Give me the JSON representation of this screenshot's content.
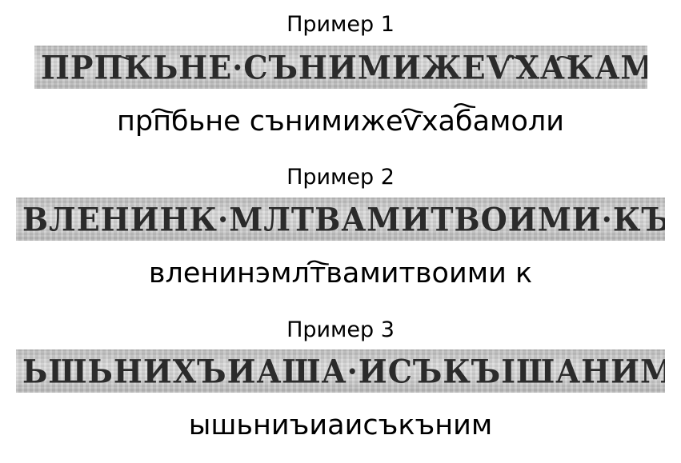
{
  "examples": [
    {
      "title": "Пример 1",
      "manuscript_text": "прп҇кьне·сънимижеѵ҇ха҇камоли",
      "transcription": "прп҇бьне сънимижеѵ҇хаб҇амоли"
    },
    {
      "title": "Пример 2",
      "manuscript_text": "вленинк·млтвамитвоими·къ",
      "transcription": "вленинэмлт҇вамитвоими к"
    },
    {
      "title": "Пример 3",
      "manuscript_text": "ьшьнихъиаша·исъкъішанимн",
      "transcription": "ышьниъиаисъкъним"
    }
  ]
}
